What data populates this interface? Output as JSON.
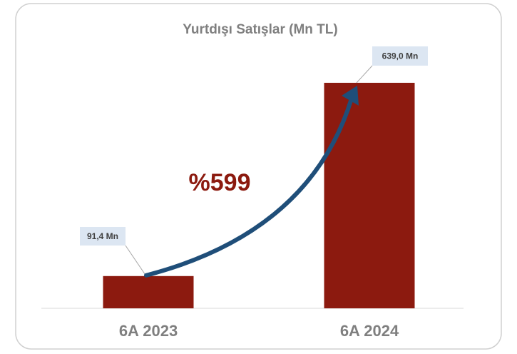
{
  "chart_data": {
    "type": "bar",
    "title": "Yurtdışı Satışlar (Mn TL)",
    "categories": [
      "6A 2023",
      "6A 2024"
    ],
    "values": [
      91.4,
      639.0
    ],
    "value_labels": [
      "91,4 Mn",
      "639,0 Mn"
    ],
    "color": "#8c1a0f",
    "annotation": "%599"
  }
}
